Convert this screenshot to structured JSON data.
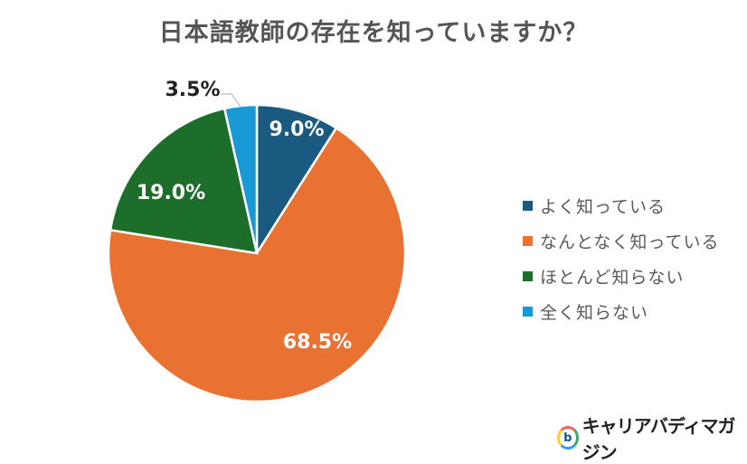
{
  "title": "日本語教師の存在を知っていますか？",
  "chart_data": {
    "type": "pie",
    "title": "日本語教師の存在を知っていますか？",
    "categories": [
      "よく知っている",
      "なんとなく知っている",
      "ほとんど知らない",
      "全く知らない"
    ],
    "values": [
      9.0,
      68.5,
      19.0,
      3.5
    ],
    "labels": [
      "9.0%",
      "68.5%",
      "19.0%",
      "3.5%"
    ],
    "colors": [
      "#1b5a80",
      "#e97132",
      "#1e6e2b",
      "#1899d6"
    ],
    "start_angle": "12 o'clock, clockwise",
    "legend_position": "right"
  },
  "legend": [
    {
      "label": "よく知っている",
      "color": "#1b5a80"
    },
    {
      "label": "なんとなく知っている",
      "color": "#e97132"
    },
    {
      "label": "ほとんど知らない",
      "color": "#1e6e2b"
    },
    {
      "label": "全く知らない",
      "color": "#1899d6"
    }
  ],
  "logo": {
    "mark": "b",
    "text": "キャリアバディマガジン"
  }
}
